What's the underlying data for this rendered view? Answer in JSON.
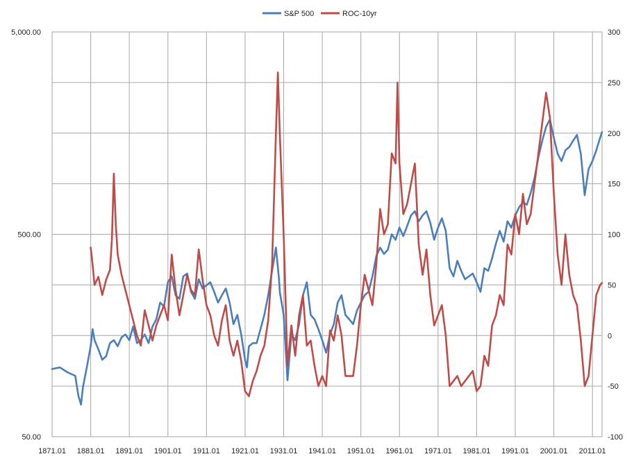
{
  "chart_data": {
    "type": "line",
    "title": "",
    "xlabel": "",
    "ylabel_left": "",
    "ylabel_right": "",
    "legend_position": "top",
    "grid": true,
    "x_ticks": [
      "1871.01",
      "1881.01",
      "1891.01",
      "1901.01",
      "1911.01",
      "1921.01",
      "1931.01",
      "1941.01",
      "1951.01",
      "1961.01",
      "1971.01",
      "1981.01",
      "1991.01",
      "2001.01",
      "2011.01"
    ],
    "x_range": [
      1871,
      2013.5
    ],
    "y_left": {
      "scale": "log",
      "range": [
        50,
        5000
      ],
      "ticks": [
        50,
        500,
        5000
      ],
      "tick_labels": [
        "50.00",
        "500.00",
        "5,000.00"
      ]
    },
    "y_right": {
      "scale": "linear",
      "range": [
        -100,
        300
      ],
      "ticks": [
        -100,
        -50,
        0,
        50,
        100,
        150,
        200,
        250,
        300
      ],
      "tick_labels": [
        "-100",
        "-50",
        "0",
        "50",
        "100",
        "150",
        "200",
        "250",
        "300"
      ]
    },
    "series": [
      {
        "name": "S&P 500",
        "axis": "left",
        "color": "#4a7ebb",
        "points": [
          [
            1871,
            108
          ],
          [
            1873,
            110
          ],
          [
            1875,
            104
          ],
          [
            1877,
            100
          ],
          [
            1877.8,
            80
          ],
          [
            1878.5,
            72
          ],
          [
            1879,
            88
          ],
          [
            1880,
            110
          ],
          [
            1881,
            140
          ],
          [
            1881.5,
            170
          ],
          [
            1882,
            150
          ],
          [
            1883,
            135
          ],
          [
            1884,
            120
          ],
          [
            1885,
            125
          ],
          [
            1886,
            145
          ],
          [
            1887,
            150
          ],
          [
            1888,
            140
          ],
          [
            1889,
            155
          ],
          [
            1890,
            160
          ],
          [
            1891,
            150
          ],
          [
            1892,
            175
          ],
          [
            1893,
            145
          ],
          [
            1894,
            150
          ],
          [
            1895,
            160
          ],
          [
            1896,
            145
          ],
          [
            1897,
            175
          ],
          [
            1898,
            190
          ],
          [
            1899,
            230
          ],
          [
            1900,
            220
          ],
          [
            1901,
            290
          ],
          [
            1902,
            310
          ],
          [
            1903,
            250
          ],
          [
            1904,
            240
          ],
          [
            1905,
            310
          ],
          [
            1906,
            320
          ],
          [
            1907,
            260
          ],
          [
            1908,
            240
          ],
          [
            1909,
            300
          ],
          [
            1910,
            270
          ],
          [
            1911,
            280
          ],
          [
            1912,
            290
          ],
          [
            1913,
            260
          ],
          [
            1914,
            230
          ],
          [
            1915,
            250
          ],
          [
            1916,
            270
          ],
          [
            1917,
            230
          ],
          [
            1918,
            180
          ],
          [
            1919,
            200
          ],
          [
            1920,
            160
          ],
          [
            1921,
            120
          ],
          [
            1921.5,
            110
          ],
          [
            1922,
            140
          ],
          [
            1923,
            145
          ],
          [
            1924,
            145
          ],
          [
            1925,
            170
          ],
          [
            1926,
            200
          ],
          [
            1927,
            250
          ],
          [
            1928,
            330
          ],
          [
            1929,
            430
          ],
          [
            1929.8,
            300
          ],
          [
            1930,
            260
          ],
          [
            1931,
            200
          ],
          [
            1932,
            95
          ],
          [
            1933,
            160
          ],
          [
            1934,
            150
          ],
          [
            1935,
            180
          ],
          [
            1936,
            250
          ],
          [
            1937,
            290
          ],
          [
            1938,
            200
          ],
          [
            1939,
            190
          ],
          [
            1940,
            170
          ],
          [
            1941,
            150
          ],
          [
            1942,
            130
          ],
          [
            1943,
            160
          ],
          [
            1944,
            180
          ],
          [
            1945,
            230
          ],
          [
            1946,
            250
          ],
          [
            1947,
            200
          ],
          [
            1948,
            190
          ],
          [
            1949,
            180
          ],
          [
            1950,
            210
          ],
          [
            1951,
            230
          ],
          [
            1952,
            250
          ],
          [
            1953,
            260
          ],
          [
            1954,
            310
          ],
          [
            1955,
            390
          ],
          [
            1956,
            430
          ],
          [
            1957,
            400
          ],
          [
            1958,
            420
          ],
          [
            1959,
            500
          ],
          [
            1960,
            470
          ],
          [
            1961,
            540
          ],
          [
            1962,
            490
          ],
          [
            1963,
            550
          ],
          [
            1964,
            620
          ],
          [
            1965,
            650
          ],
          [
            1966,
            580
          ],
          [
            1967,
            620
          ],
          [
            1968,
            650
          ],
          [
            1969,
            570
          ],
          [
            1970,
            470
          ],
          [
            1971,
            540
          ],
          [
            1972,
            600
          ],
          [
            1973,
            520
          ],
          [
            1974,
            340
          ],
          [
            1975,
            310
          ],
          [
            1976,
            370
          ],
          [
            1977,
            330
          ],
          [
            1978,
            300
          ],
          [
            1979,
            310
          ],
          [
            1980,
            320
          ],
          [
            1981,
            290
          ],
          [
            1982,
            260
          ],
          [
            1983,
            340
          ],
          [
            1984,
            330
          ],
          [
            1985,
            380
          ],
          [
            1986,
            450
          ],
          [
            1987,
            520
          ],
          [
            1988,
            460
          ],
          [
            1989,
            580
          ],
          [
            1990,
            540
          ],
          [
            1991,
            620
          ],
          [
            1992,
            680
          ],
          [
            1993,
            720
          ],
          [
            1994,
            700
          ],
          [
            1995,
            800
          ],
          [
            1996,
            950
          ],
          [
            1997,
            1200
          ],
          [
            1998,
            1450
          ],
          [
            1999,
            1700
          ],
          [
            2000,
            1850
          ],
          [
            2001,
            1500
          ],
          [
            2002,
            1250
          ],
          [
            2003,
            1150
          ],
          [
            2004,
            1300
          ],
          [
            2005,
            1350
          ],
          [
            2006,
            1450
          ],
          [
            2007,
            1550
          ],
          [
            2008,
            1250
          ],
          [
            2009,
            780
          ],
          [
            2010,
            1050
          ],
          [
            2011,
            1150
          ],
          [
            2012,
            1300
          ],
          [
            2013,
            1500
          ],
          [
            2013.5,
            1600
          ]
        ]
      },
      {
        "name": "ROC-10yr",
        "axis": "right",
        "color": "#be4b48",
        "points": [
          [
            1881,
            87
          ],
          [
            1881.5,
            70
          ],
          [
            1882,
            50
          ],
          [
            1883,
            58
          ],
          [
            1884,
            40
          ],
          [
            1885,
            55
          ],
          [
            1886,
            65
          ],
          [
            1886.5,
            95
          ],
          [
            1887,
            160
          ],
          [
            1887.5,
            110
          ],
          [
            1888,
            80
          ],
          [
            1889,
            60
          ],
          [
            1890,
            45
          ],
          [
            1891,
            30
          ],
          [
            1892,
            15
          ],
          [
            1893,
            0
          ],
          [
            1894,
            -10
          ],
          [
            1895,
            25
          ],
          [
            1896,
            10
          ],
          [
            1897,
            -5
          ],
          [
            1898,
            10
          ],
          [
            1899,
            20
          ],
          [
            1900,
            30
          ],
          [
            1901,
            15
          ],
          [
            1902,
            80
          ],
          [
            1903,
            45
          ],
          [
            1904,
            20
          ],
          [
            1905,
            40
          ],
          [
            1906,
            60
          ],
          [
            1907,
            45
          ],
          [
            1908,
            40
          ],
          [
            1909,
            85
          ],
          [
            1910,
            55
          ],
          [
            1911,
            30
          ],
          [
            1912,
            20
          ],
          [
            1913,
            0
          ],
          [
            1914,
            -10
          ],
          [
            1915,
            15
          ],
          [
            1916,
            30
          ],
          [
            1917,
            -5
          ],
          [
            1918,
            -20
          ],
          [
            1919,
            -5
          ],
          [
            1920,
            -25
          ],
          [
            1921,
            -55
          ],
          [
            1922,
            -60
          ],
          [
            1923,
            -45
          ],
          [
            1924,
            -35
          ],
          [
            1925,
            -20
          ],
          [
            1926,
            -10
          ],
          [
            1927,
            15
          ],
          [
            1928,
            70
          ],
          [
            1929,
            200
          ],
          [
            1929.5,
            260
          ],
          [
            1930,
            200
          ],
          [
            1931,
            100
          ],
          [
            1932,
            -30
          ],
          [
            1933,
            10
          ],
          [
            1934,
            -20
          ],
          [
            1935,
            20
          ],
          [
            1936,
            40
          ],
          [
            1937,
            -10
          ],
          [
            1938,
            -5
          ],
          [
            1939,
            -30
          ],
          [
            1940,
            -50
          ],
          [
            1941,
            -40
          ],
          [
            1942,
            -50
          ],
          [
            1943,
            5
          ],
          [
            1944,
            -5
          ],
          [
            1945,
            20
          ],
          [
            1946,
            0
          ],
          [
            1947,
            -40
          ],
          [
            1948,
            -40
          ],
          [
            1949,
            -40
          ],
          [
            1950,
            -10
          ],
          [
            1951,
            30
          ],
          [
            1952,
            60
          ],
          [
            1953,
            45
          ],
          [
            1954,
            30
          ],
          [
            1955,
            70
          ],
          [
            1956,
            125
          ],
          [
            1957,
            100
          ],
          [
            1958,
            110
          ],
          [
            1959,
            180
          ],
          [
            1960,
            170
          ],
          [
            1960.5,
            250
          ],
          [
            1961,
            170
          ],
          [
            1962,
            120
          ],
          [
            1963,
            130
          ],
          [
            1964,
            150
          ],
          [
            1965,
            170
          ],
          [
            1966,
            90
          ],
          [
            1967,
            60
          ],
          [
            1968,
            85
          ],
          [
            1969,
            40
          ],
          [
            1970,
            10
          ],
          [
            1971,
            20
          ],
          [
            1972,
            30
          ],
          [
            1973,
            0
          ],
          [
            1974,
            -50
          ],
          [
            1975,
            -45
          ],
          [
            1976,
            -40
          ],
          [
            1977,
            -50
          ],
          [
            1978,
            -45
          ],
          [
            1979,
            -40
          ],
          [
            1980,
            -35
          ],
          [
            1981,
            -55
          ],
          [
            1982,
            -50
          ],
          [
            1983,
            -20
          ],
          [
            1984,
            -30
          ],
          [
            1985,
            10
          ],
          [
            1986,
            20
          ],
          [
            1987,
            40
          ],
          [
            1988,
            30
          ],
          [
            1989,
            90
          ],
          [
            1990,
            80
          ],
          [
            1991,
            120
          ],
          [
            1992,
            100
          ],
          [
            1993,
            140
          ],
          [
            1994,
            110
          ],
          [
            1995,
            120
          ],
          [
            1996,
            150
          ],
          [
            1997,
            180
          ],
          [
            1998,
            210
          ],
          [
            1999,
            240
          ],
          [
            2000,
            215
          ],
          [
            2001,
            140
          ],
          [
            2002,
            80
          ],
          [
            2003,
            50
          ],
          [
            2004,
            100
          ],
          [
            2005,
            60
          ],
          [
            2006,
            40
          ],
          [
            2007,
            30
          ],
          [
            2008,
            -5
          ],
          [
            2009,
            -50
          ],
          [
            2010,
            -40
          ],
          [
            2011,
            0
          ],
          [
            2012,
            40
          ],
          [
            2013,
            50
          ],
          [
            2013.5,
            52
          ]
        ]
      }
    ]
  }
}
